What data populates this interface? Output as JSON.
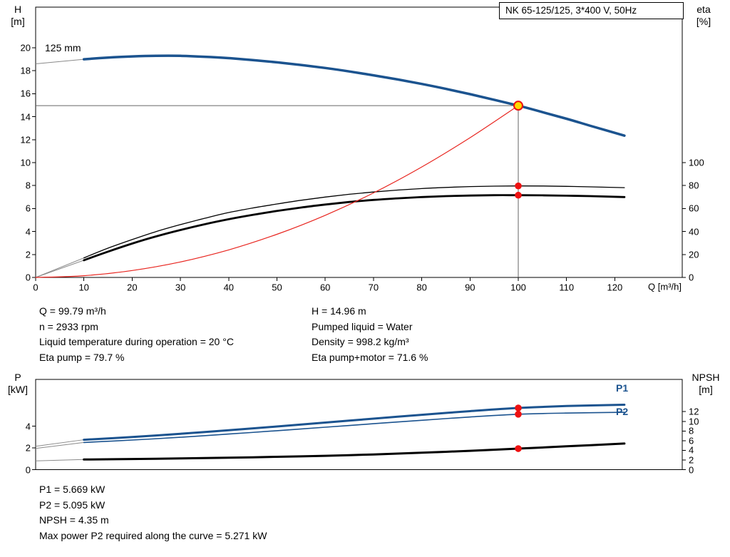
{
  "header": {
    "title": "NK 65-125/125, 3*400 V, 50Hz"
  },
  "top_chart": {
    "left_axis": {
      "line1": "H",
      "line2": "[m]"
    },
    "right_axis": {
      "line1": "eta",
      "line2": "[%]"
    },
    "x_axis_label": "Q [m³/h]",
    "curve_label": "125 mm"
  },
  "bottom_chart": {
    "left_axis": {
      "line1": "P",
      "line2": "[kW]"
    },
    "right_axis": {
      "line1": "NPSH",
      "line2": "[m]"
    },
    "p1_label": "P1",
    "p2_label": "P2"
  },
  "info_block": {
    "left": [
      "Q = 99.79 m³/h",
      "n = 2933 rpm",
      "Liquid temperature during operation = 20 °C",
      "Eta pump = 79.7 %"
    ],
    "right": [
      "H = 14.96 m",
      "Pumped liquid = Water",
      "Density = 998.2 kg/m³",
      "Eta pump+motor = 71.6 %"
    ]
  },
  "results_block": [
    "P1 = 5.669 kW",
    "P2 = 5.095 kW",
    "NPSH = 4.35 m",
    "Max power P2 required along the curve = 5.271 kW"
  ],
  "colors": {
    "curve_blue": "#1b538f",
    "curve_red": "#e8251f",
    "marker_red": "#ee1111",
    "duty_yellow": "#ffd900",
    "black": "#000000",
    "ref_gray": "#666666",
    "lead_gray": "#8a8a8a"
  },
  "chart_data": [
    {
      "id": "qh_chart",
      "type": "line",
      "title": "NK 65-125/125, 3*400 V, 50Hz",
      "xlabel": "Q [m³/h]",
      "ylabel_left": "H [m]",
      "ylabel_right": "eta [%]",
      "xlim": [
        0,
        134
      ],
      "ylim_left": [
        0,
        23.5
      ],
      "ylim_right": [
        0,
        235
      ],
      "x_ticks": [
        0,
        10,
        20,
        30,
        40,
        50,
        60,
        70,
        80,
        90,
        100,
        110,
        120
      ],
      "y_ticks_left": [
        0,
        2,
        4,
        6,
        8,
        10,
        12,
        14,
        16,
        18,
        20
      ],
      "y_ticks_right": [
        0,
        20,
        40,
        60,
        80,
        100
      ],
      "duty_point": {
        "Q": 99.79,
        "H": 14.96
      },
      "series": [
        {
          "name": "pump_curve_125mm",
          "axis": "left",
          "color": "blue",
          "width": 3.5,
          "points": [
            [
              10,
              19.0
            ],
            [
              15,
              19.15
            ],
            [
              20,
              19.25
            ],
            [
              25,
              19.3
            ],
            [
              30,
              19.3
            ],
            [
              35,
              19.22
            ],
            [
              40,
              19.1
            ],
            [
              45,
              18.93
            ],
            [
              50,
              18.73
            ],
            [
              55,
              18.5
            ],
            [
              60,
              18.24
            ],
            [
              65,
              17.94
            ],
            [
              70,
              17.6
            ],
            [
              75,
              17.24
            ],
            [
              80,
              16.85
            ],
            [
              85,
              16.42
            ],
            [
              90,
              15.96
            ],
            [
              95,
              15.47
            ],
            [
              100,
              14.96
            ],
            [
              105,
              14.4
            ],
            [
              110,
              13.82
            ],
            [
              115,
              13.2
            ],
            [
              122,
              12.35
            ]
          ]
        },
        {
          "name": "eta_pump",
          "axis": "right",
          "color": "black",
          "width": 1.3,
          "points": [
            [
              10,
              17
            ],
            [
              15,
              25.5
            ],
            [
              20,
              33
            ],
            [
              25,
              40
            ],
            [
              30,
              46
            ],
            [
              35,
              51.5
            ],
            [
              40,
              56.5
            ],
            [
              45,
              60.5
            ],
            [
              50,
              64
            ],
            [
              55,
              67.2
            ],
            [
              60,
              70
            ],
            [
              65,
              72.4
            ],
            [
              70,
              74.4
            ],
            [
              75,
              76.1
            ],
            [
              80,
              77.4
            ],
            [
              85,
              78.4
            ],
            [
              90,
              79.1
            ],
            [
              95,
              79.5
            ],
            [
              100,
              79.7
            ],
            [
              105,
              79.6
            ],
            [
              110,
              79.3
            ],
            [
              115,
              78.9
            ],
            [
              122,
              78.2
            ]
          ]
        },
        {
          "name": "eta_pump_motor",
          "axis": "right",
          "color": "black",
          "width": 2.8,
          "points": [
            [
              10,
              15
            ],
            [
              15,
              22.5
            ],
            [
              20,
              29.5
            ],
            [
              25,
              35.8
            ],
            [
              30,
              41.3
            ],
            [
              35,
              46.3
            ],
            [
              40,
              50.7
            ],
            [
              45,
              54.5
            ],
            [
              50,
              57.9
            ],
            [
              55,
              60.9
            ],
            [
              60,
              63.5
            ],
            [
              65,
              65.7
            ],
            [
              70,
              67.5
            ],
            [
              75,
              68.9
            ],
            [
              80,
              70.0
            ],
            [
              85,
              70.8
            ],
            [
              90,
              71.3
            ],
            [
              95,
              71.6
            ],
            [
              100,
              71.6
            ],
            [
              105,
              71.5
            ],
            [
              110,
              71.2
            ],
            [
              115,
              70.8
            ],
            [
              122,
              70.0
            ]
          ]
        },
        {
          "name": "system_curve",
          "axis": "left",
          "color": "red",
          "width": 1.2,
          "points": [
            [
              0,
              0
            ],
            [
              10,
              0.15
            ],
            [
              20,
              0.6
            ],
            [
              30,
              1.35
            ],
            [
              40,
              2.4
            ],
            [
              50,
              3.76
            ],
            [
              60,
              5.41
            ],
            [
              70,
              7.36
            ],
            [
              80,
              9.62
            ],
            [
              90,
              12.17
            ],
            [
              100,
              14.96
            ]
          ]
        }
      ],
      "lead_lines": [
        {
          "axis": "left",
          "from": [
            0,
            18.6
          ],
          "to": [
            10,
            19.0
          ]
        },
        {
          "axis": "right",
          "from": [
            0,
            0
          ],
          "to": [
            10,
            17
          ]
        },
        {
          "axis": "right",
          "from": [
            0,
            0
          ],
          "to": [
            10,
            15
          ]
        }
      ],
      "ref_lines": [
        {
          "orient": "h",
          "value": 14.96,
          "from": 0,
          "to": 100
        },
        {
          "orient": "v",
          "value": 100,
          "from": 0,
          "to": 14.96
        }
      ],
      "markers": [
        {
          "x": 100,
          "y": 14.96,
          "axis": "left",
          "kind": "duty"
        },
        {
          "x": 100,
          "y": 79.7,
          "axis": "right",
          "kind": "dot"
        },
        {
          "x": 100,
          "y": 71.6,
          "axis": "right",
          "kind": "dot"
        }
      ]
    },
    {
      "id": "p_npsh_chart",
      "type": "line",
      "title": "",
      "xlabel": "",
      "ylabel_left": "P [kW]",
      "ylabel_right": "NPSH [m]",
      "xlim": [
        0,
        134
      ],
      "ylim_left": [
        0,
        8.3
      ],
      "ylim_right": [
        0,
        18.7
      ],
      "x_ticks": [],
      "y_ticks_left": [
        0,
        2,
        4
      ],
      "y_ticks_right": [
        0,
        2,
        4,
        6,
        8,
        10,
        12
      ],
      "series": [
        {
          "name": "P1",
          "axis": "left",
          "color": "blue",
          "width": 3.0,
          "points": [
            [
              10,
              2.75
            ],
            [
              20,
              3.0
            ],
            [
              30,
              3.3
            ],
            [
              40,
              3.62
            ],
            [
              50,
              3.97
            ],
            [
              60,
              4.33
            ],
            [
              70,
              4.69
            ],
            [
              80,
              5.04
            ],
            [
              90,
              5.38
            ],
            [
              100,
              5.669
            ],
            [
              110,
              5.85
            ],
            [
              122,
              5.97
            ]
          ]
        },
        {
          "name": "P2",
          "axis": "left",
          "color": "blue",
          "width": 1.6,
          "points": [
            [
              10,
              2.5
            ],
            [
              20,
              2.72
            ],
            [
              30,
              2.98
            ],
            [
              40,
              3.27
            ],
            [
              50,
              3.58
            ],
            [
              60,
              3.9
            ],
            [
              70,
              4.22
            ],
            [
              80,
              4.54
            ],
            [
              90,
              4.84
            ],
            [
              100,
              5.095
            ],
            [
              110,
              5.2
            ],
            [
              122,
              5.271
            ]
          ]
        },
        {
          "name": "NPSH",
          "axis": "right",
          "color": "black",
          "width": 3.0,
          "points": [
            [
              10,
              2.1
            ],
            [
              20,
              2.2
            ],
            [
              30,
              2.32
            ],
            [
              40,
              2.47
            ],
            [
              50,
              2.65
            ],
            [
              60,
              2.87
            ],
            [
              70,
              3.15
            ],
            [
              80,
              3.5
            ],
            [
              90,
              3.9
            ],
            [
              100,
              4.35
            ],
            [
              110,
              4.82
            ],
            [
              122,
              5.4
            ]
          ]
        }
      ],
      "lead_lines": [
        {
          "axis": "left",
          "from": [
            0,
            2.15
          ],
          "to": [
            10,
            2.75
          ]
        },
        {
          "axis": "left",
          "from": [
            0,
            1.95
          ],
          "to": [
            10,
            2.5
          ]
        },
        {
          "axis": "right",
          "from": [
            0,
            1.8
          ],
          "to": [
            10,
            2.1
          ]
        }
      ],
      "ref_lines": [],
      "markers": [
        {
          "x": 100,
          "y": 5.669,
          "axis": "left",
          "kind": "dot"
        },
        {
          "x": 100,
          "y": 5.095,
          "axis": "left",
          "kind": "dot"
        },
        {
          "x": 100,
          "y": 4.35,
          "axis": "right",
          "kind": "dot"
        }
      ]
    }
  ]
}
